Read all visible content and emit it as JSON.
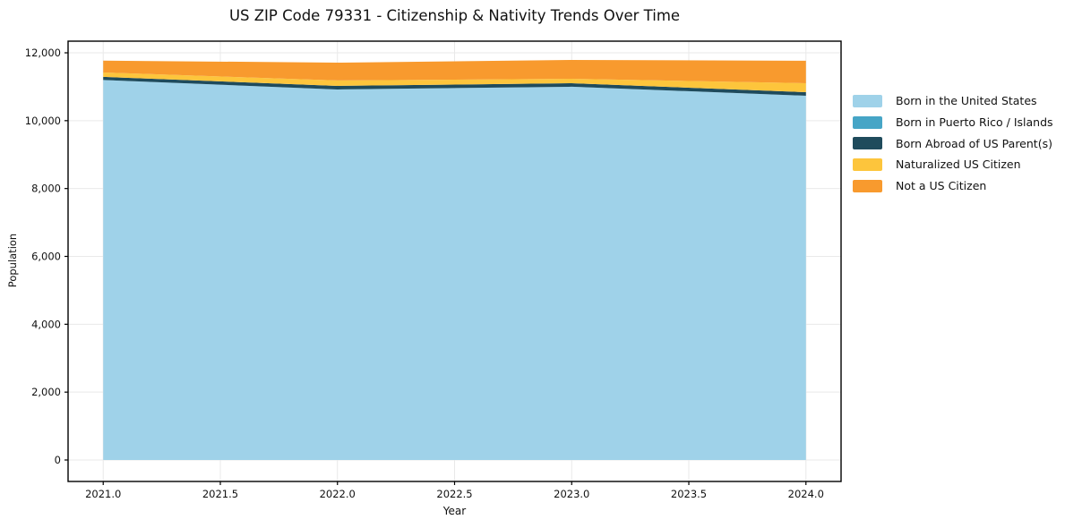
{
  "chart_data": {
    "type": "area",
    "stacked": true,
    "title": "US ZIP Code 79331 - Citizenship & Nativity Trends Over Time",
    "xlabel": "Year",
    "ylabel": "Population",
    "x": [
      2021,
      2022,
      2023,
      2024
    ],
    "series": [
      {
        "name": "Born in the United States",
        "color": "#9fd2e9",
        "values": [
          11200,
          10920,
          11000,
          10735
        ]
      },
      {
        "name": "Born in Puerto Rico / Islands",
        "color": "#46a5c6",
        "values": [
          0,
          0,
          0,
          0
        ]
      },
      {
        "name": "Born Abroad of US Parent(s)",
        "color": "#1f4b5c",
        "values": [
          90,
          105,
          105,
          105
        ]
      },
      {
        "name": "Naturalized US Citizen",
        "color": "#fdc53c",
        "values": [
          130,
          160,
          130,
          265
        ]
      },
      {
        "name": "Not a US Citizen",
        "color": "#f89a2e",
        "values": [
          350,
          525,
          555,
          660
        ]
      }
    ],
    "totals": [
      11770,
      11710,
      11790,
      11765
    ],
    "xlim": [
      2020.85,
      2024.15
    ],
    "ylim": [
      -633,
      12343
    ],
    "x_ticks": [
      2021.0,
      2021.5,
      2022.0,
      2022.5,
      2023.0,
      2023.5,
      2024.0
    ],
    "x_tick_labels": [
      "2021.0",
      "2021.5",
      "2022.0",
      "2022.5",
      "2023.0",
      "2023.5",
      "2024.0"
    ],
    "y_ticks": [
      0,
      2000,
      4000,
      6000,
      8000,
      10000,
      12000
    ],
    "y_tick_labels": [
      "0",
      "2,000",
      "4,000",
      "6,000",
      "8,000",
      "10,000",
      "12,000"
    ],
    "grid": true,
    "grid_color": "#e9e9e9",
    "axis_color": "#000000",
    "text_color": "#111111",
    "legend_position": "right"
  }
}
